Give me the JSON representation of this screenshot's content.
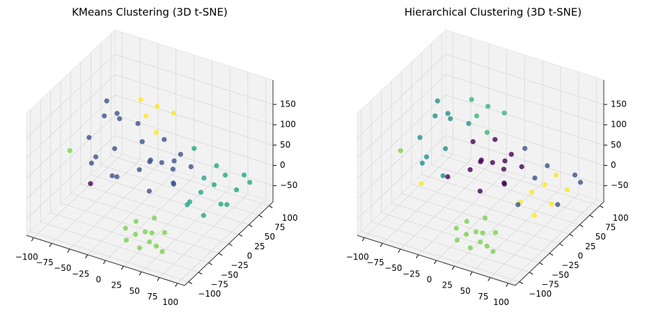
{
  "chart_data": [
    {
      "type": "scatter3d",
      "title": "KMeans Clustering (3D t-SNE)",
      "xlim": [
        -110,
        110
      ],
      "ylim": [
        -110,
        110
      ],
      "zlim": [
        -90,
        210
      ],
      "xticks": [
        {
          "value": -100,
          "label": "−100"
        },
        {
          "value": -75,
          "label": "−75"
        },
        {
          "value": -50,
          "label": "−50"
        },
        {
          "value": -25,
          "label": "−25"
        },
        0,
        25,
        50,
        75,
        100
      ],
      "yticks": [
        {
          "value": -100,
          "label": "−100"
        },
        {
          "value": -75,
          "label": "−75"
        },
        {
          "value": -50,
          "label": "−50"
        },
        {
          "value": -25,
          "label": "−25"
        },
        0,
        25,
        50,
        75,
        100
      ],
      "zticks": [
        {
          "value": -50,
          "label": "−50"
        },
        0,
        50,
        100,
        150
      ],
      "grid": true,
      "series": [
        {
          "color": "#7ad151",
          "x": [
            15,
            25,
            35,
            45,
            55,
            20,
            30,
            50,
            60,
            40,
            10,
            65,
            -100
          ],
          "y": [
            -85,
            -80,
            -88,
            -75,
            -82,
            -70,
            -65,
            -90,
            -70,
            -60,
            -78,
            -85,
            -20
          ],
          "z": [
            -55,
            -40,
            -60,
            -30,
            -50,
            -20,
            -45,
            -35,
            -25,
            -10,
            -35,
            -55,
            40
          ]
        },
        {
          "color": "#22a884",
          "x": [
            50,
            60,
            70,
            80,
            90,
            75,
            85,
            65,
            95,
            55,
            70,
            85,
            45,
            100
          ],
          "y": [
            10,
            20,
            35,
            45,
            55,
            0,
            25,
            50,
            65,
            -5,
            10,
            40,
            30,
            70
          ],
          "z": [
            -30,
            -10,
            0,
            20,
            -20,
            -40,
            -30,
            30,
            10,
            -20,
            40,
            -45,
            80,
            -10
          ]
        },
        {
          "color": "#3b528b",
          "x": [
            -20,
            -10,
            0,
            10,
            20,
            30,
            -30,
            5,
            15,
            -5,
            25,
            35,
            -40,
            0,
            -90,
            -80,
            -70,
            -60,
            -85,
            -50,
            -75,
            -65,
            -55,
            -95
          ],
          "y": [
            10,
            20,
            30,
            40,
            25,
            5,
            35,
            -10,
            50,
            45,
            15,
            40,
            -10,
            0,
            10,
            30,
            50,
            20,
            45,
            60,
            0,
            35,
            5,
            25
          ],
          "z": [
            10,
            30,
            20,
            0,
            40,
            10,
            50,
            -10,
            30,
            60,
            -5,
            20,
            0,
            50,
            50,
            90,
            70,
            30,
            110,
            60,
            20,
            100,
            -20,
            -30
          ]
        },
        {
          "color": "#fde725",
          "x": [
            -50,
            -40,
            -30,
            -20,
            -60
          ],
          "y": [
            80,
            90,
            70,
            95,
            85
          ],
          "z": [
            60,
            80,
            40,
            70,
            90
          ]
        },
        {
          "color": "#440154",
          "x": [
            -60
          ],
          "y": [
            -40
          ],
          "z": [
            0
          ]
        }
      ]
    },
    {
      "type": "scatter3d",
      "title": "Hierarchical Clustering (3D t-SNE)",
      "xlim": [
        -110,
        110
      ],
      "ylim": [
        -110,
        110
      ],
      "zlim": [
        -90,
        210
      ],
      "xticks": [
        {
          "value": -100,
          "label": "−100"
        },
        {
          "value": -75,
          "label": "−75"
        },
        {
          "value": -50,
          "label": "−50"
        },
        {
          "value": -25,
          "label": "−25"
        },
        0,
        25,
        50,
        75,
        100
      ],
      "yticks": [
        {
          "value": -100,
          "label": "−100"
        },
        {
          "value": -75,
          "label": "−75"
        },
        {
          "value": -50,
          "label": "−50"
        },
        {
          "value": -25,
          "label": "−25"
        },
        0,
        25,
        50,
        75,
        100
      ],
      "zticks": [
        {
          "value": -50,
          "label": "−50"
        },
        0,
        50,
        100,
        150
      ],
      "grid": true,
      "series": [
        {
          "color": "#7ad151",
          "x": [
            15,
            25,
            35,
            45,
            55,
            20,
            30,
            50,
            60,
            40,
            10,
            65,
            -100
          ],
          "y": [
            -85,
            -80,
            -88,
            -75,
            -82,
            -70,
            -65,
            -90,
            -70,
            -60,
            -78,
            -85,
            -20
          ],
          "z": [
            -55,
            -40,
            -60,
            -30,
            -50,
            -20,
            -45,
            -35,
            -25,
            -10,
            -35,
            -55,
            40
          ]
        },
        {
          "color": "#fde725",
          "x": [
            50,
            60,
            70,
            80,
            90,
            75,
            85,
            -60
          ],
          "y": [
            10,
            20,
            35,
            45,
            55,
            0,
            25,
            -40
          ],
          "z": [
            -30,
            -10,
            0,
            20,
            -20,
            -40,
            -30,
            0
          ]
        },
        {
          "color": "#3b528b",
          "x": [
            65,
            95,
            55,
            70,
            85,
            45,
            100
          ],
          "y": [
            50,
            65,
            -5,
            10,
            40,
            30,
            70
          ],
          "z": [
            30,
            10,
            -20,
            40,
            -45,
            80,
            -10
          ]
        },
        {
          "color": "#440154",
          "x": [
            -20,
            -10,
            0,
            10,
            20,
            30,
            -30,
            5,
            15,
            -5,
            25,
            35,
            -40,
            0
          ],
          "y": [
            10,
            20,
            30,
            40,
            25,
            5,
            35,
            -10,
            50,
            45,
            15,
            40,
            -10,
            0
          ],
          "z": [
            10,
            30,
            20,
            0,
            40,
            10,
            50,
            -10,
            30,
            60,
            -5,
            20,
            0,
            50
          ]
        },
        {
          "color": "#21918c",
          "x": [
            -90,
            -80,
            -70,
            -60,
            -85,
            -50,
            -75,
            -65,
            -55,
            -95
          ],
          "y": [
            10,
            30,
            50,
            20,
            45,
            60,
            0,
            35,
            5,
            25
          ],
          "z": [
            50,
            90,
            70,
            30,
            110,
            60,
            20,
            100,
            -20,
            -30
          ]
        },
        {
          "color": "#35b779",
          "x": [
            -50,
            -40,
            -30,
            -20,
            -60
          ],
          "y": [
            80,
            90,
            70,
            95,
            85
          ],
          "z": [
            60,
            80,
            40,
            70,
            90
          ]
        }
      ]
    }
  ]
}
